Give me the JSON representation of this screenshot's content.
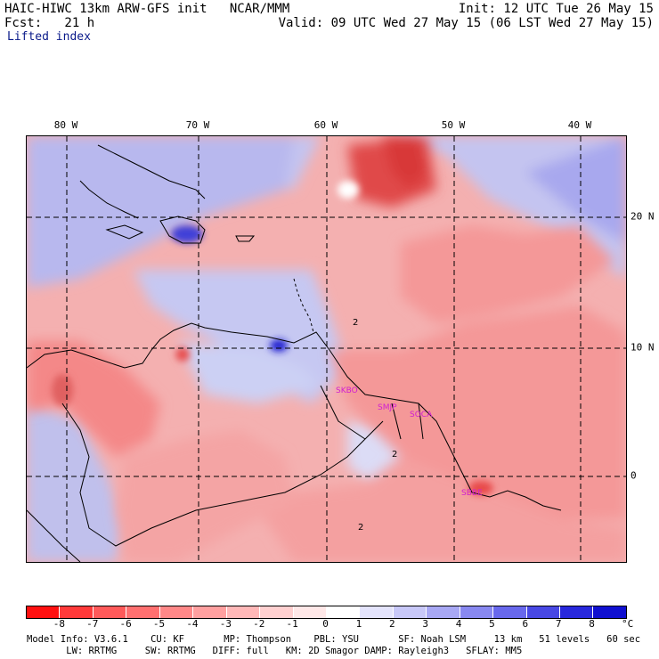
{
  "header": {
    "title_left": "HAIC-HIWC 13km ARW-GFS init   NCAR/MMM",
    "fcst": "Fcst:   21 h",
    "init": "Init: 12 UTC Tue 26 May 15",
    "valid": "Valid: 09 UTC Wed 27 May 15 (06 LST Wed 27 May 15)",
    "variable": "Lifted index"
  },
  "map": {
    "longitudes": [
      "80 W",
      "70 W",
      "60 W",
      "50 W",
      "40 W"
    ],
    "latitudes": [
      "20 N",
      "10 N",
      "0"
    ],
    "stations": [
      "SKBO",
      "SMJP",
      "SOCA",
      "SBBE"
    ],
    "contour_labels": [
      "2",
      "2",
      "2"
    ],
    "colors": {
      "warm_strong": "#e8303a",
      "warm": "#f4989a",
      "neutral": "#ffffff",
      "cool": "#b4b8f2",
      "cool_strong": "#2828d0",
      "station_label": "#d020d0"
    }
  },
  "colorbar": {
    "ticks": [
      "-8",
      "-7",
      "-6",
      "-5",
      "-4",
      "-3",
      "-2",
      "-1",
      "0",
      "1",
      "2",
      "3",
      "4",
      "5",
      "6",
      "7",
      "8"
    ],
    "unit": "°C",
    "colors": [
      "#ff1010",
      "#ff3a3a",
      "#ff5a5a",
      "#ff7070",
      "#ff8888",
      "#ffa0a0",
      "#ffb8b8",
      "#ffd0d0",
      "#ffe8e8",
      "#ffffff",
      "#e4e4fc",
      "#c8c8f8",
      "#a8a8f4",
      "#8888f0",
      "#6868ec",
      "#4848e4",
      "#2828dc",
      "#1010d0"
    ]
  },
  "footer": {
    "line1": "Model Info: V3.6.1    CU: KF       MP: Thompson    PBL: YSU       SF: Noah LSM     13 km   51 levels   60 sec",
    "line2": "       LW: RRTMG     SW: RRTMG   DIFF: full   KM: 2D Smagor DAMP: Rayleigh3   SFLAY: MM5"
  }
}
